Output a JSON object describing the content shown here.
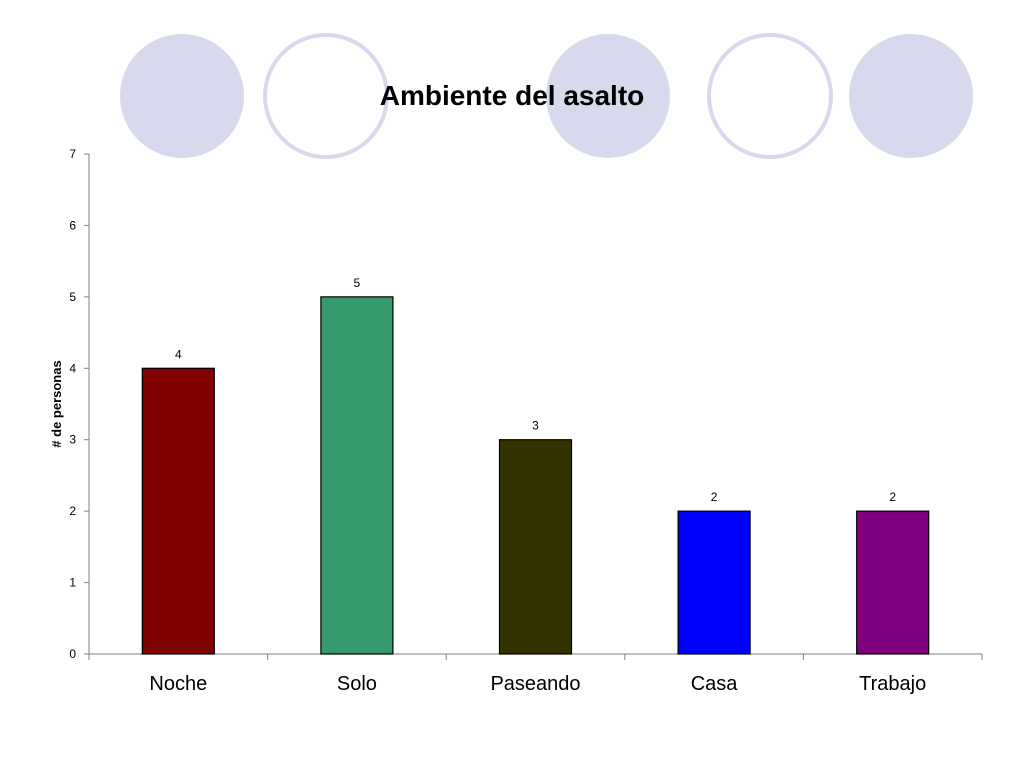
{
  "decor": {
    "circle_fill": "#d9d9ee",
    "circle_stroke": "#d9d9ee"
  },
  "chart_data": {
    "type": "bar",
    "title": "Ambiente del asalto",
    "xlabel": "",
    "ylabel": "# de personas",
    "categories": [
      "Noche",
      "Solo",
      "Paseando",
      "Casa",
      "Trabajo"
    ],
    "values": [
      4,
      5,
      3,
      2,
      2
    ],
    "colors": [
      "#800000",
      "#359a6c",
      "#333300",
      "#0000ff",
      "#800080"
    ],
    "ylim": [
      0,
      7
    ],
    "yticks": [
      0,
      1,
      2,
      3,
      4,
      5,
      6,
      7
    ],
    "grid": false,
    "legend": "none",
    "data_labels": true
  }
}
